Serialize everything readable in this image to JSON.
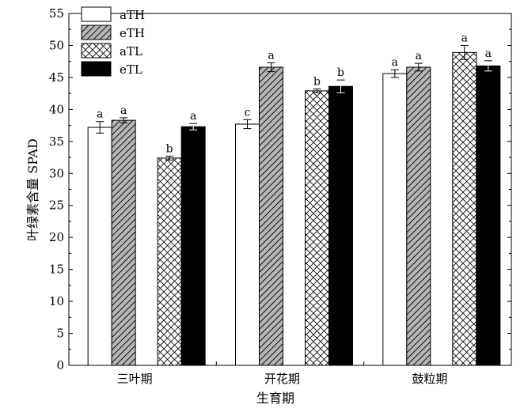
{
  "chart_data": {
    "type": "bar",
    "categories": [
      "三叶期",
      "开花期",
      "鼓粒期"
    ],
    "xlabel": "生育期",
    "ylabel": "叶绿素含量 SPAD",
    "ylim": [
      0,
      55
    ],
    "yticks": [
      0,
      5,
      10,
      15,
      20,
      25,
      30,
      35,
      40,
      45,
      50,
      55
    ],
    "grid": false,
    "legend_position": "top-left",
    "series": [
      {
        "name": "aTH",
        "pattern": "white",
        "values": [
          37.2,
          37.7,
          45.6
        ],
        "errors": [
          0.9,
          0.7,
          0.6
        ],
        "labels": [
          "a",
          "c",
          "a"
        ]
      },
      {
        "name": "eTH",
        "pattern": "diagonal",
        "values": [
          38.3,
          46.6,
          46.6
        ],
        "errors": [
          0.4,
          0.7,
          0.6
        ],
        "labels": [
          "a",
          "a",
          "a"
        ]
      },
      {
        "name": "aTL",
        "pattern": "crosshatch",
        "values": [
          32.4,
          42.9,
          48.9
        ],
        "errors": [
          0.3,
          0.3,
          1.1
        ],
        "labels": [
          "b",
          "b",
          "a"
        ]
      },
      {
        "name": "eTL",
        "pattern": "black",
        "values": [
          37.3,
          43.6,
          46.8
        ],
        "errors": [
          0.5,
          1.0,
          0.8
        ],
        "labels": [
          "a",
          "b",
          "a"
        ]
      }
    ]
  }
}
